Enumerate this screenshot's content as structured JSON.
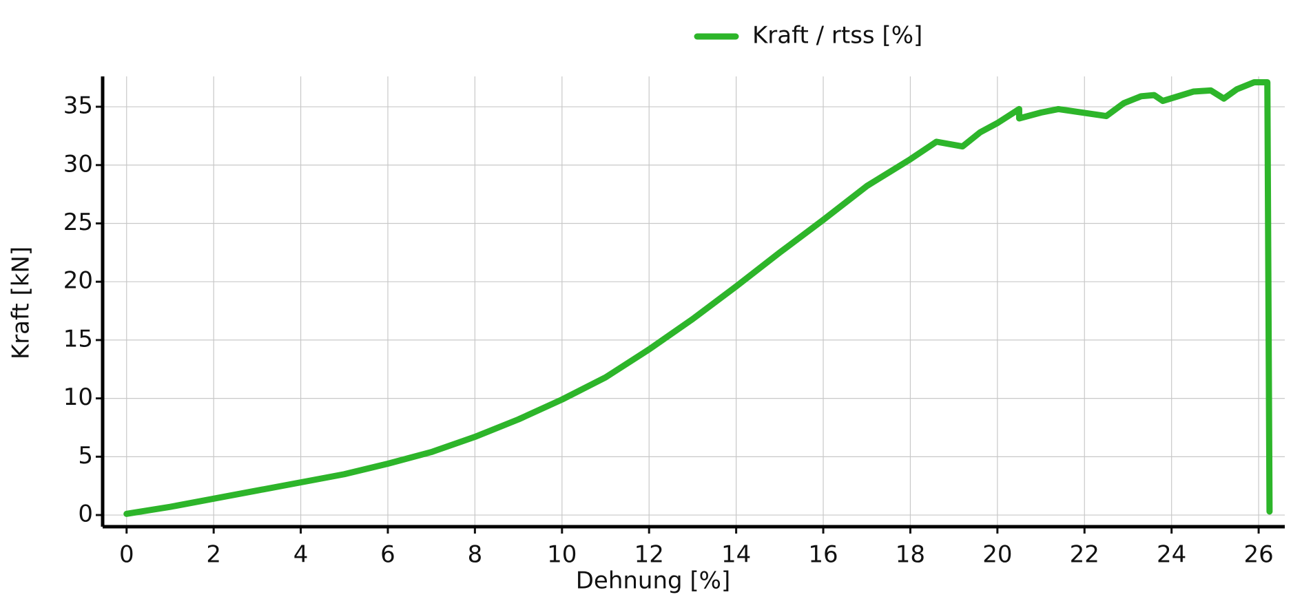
{
  "chart_data": {
    "type": "line",
    "x_label": "Dehnung [%]",
    "y_label": "Kraft [kN]",
    "x": [
      0,
      1,
      2,
      3,
      4,
      5,
      6,
      7,
      8,
      9,
      10,
      11,
      12,
      13,
      14,
      15,
      16,
      17,
      18,
      18.6,
      19.2,
      19.6,
      20,
      20.5,
      20.5,
      21,
      21.4,
      22.5,
      22.9,
      23.3,
      23.6,
      23.8,
      24.5,
      24.9,
      25.2,
      25.5,
      25.9,
      26.2,
      26.25
    ],
    "series": [
      {
        "name": "Kraft / rtss [%]",
        "color": "#2db52a",
        "values": [
          0.1,
          0.7,
          1.4,
          2.1,
          2.8,
          3.5,
          4.4,
          5.4,
          6.7,
          8.2,
          9.9,
          11.8,
          14.2,
          16.8,
          19.6,
          22.5,
          25.3,
          28.2,
          30.5,
          32,
          31.6,
          32.8,
          33.6,
          34.8,
          34.0,
          34.5,
          34.8,
          34.2,
          35.3,
          35.9,
          36.0,
          35.5,
          36.3,
          36.4,
          35.7,
          36.5,
          37.1,
          37.1,
          0.3
        ]
      }
    ],
    "xlim": [
      -0.55,
      26.6
    ],
    "ylim": [
      -1,
      37.6
    ],
    "xticks": [
      0,
      2,
      4,
      6,
      8,
      10,
      12,
      14,
      16,
      18,
      20,
      22,
      24,
      26
    ],
    "yticks": [
      0,
      5,
      10,
      15,
      20,
      25,
      30,
      35
    ],
    "grid": true,
    "legend": "top"
  }
}
